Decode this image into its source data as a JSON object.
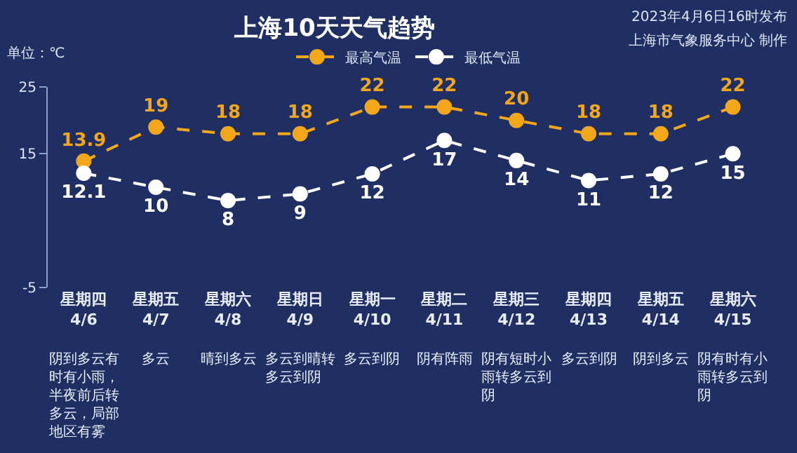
{
  "chart_data": {
    "type": "line",
    "title": "上海10天天气趋势",
    "ylabel": "单位：℃",
    "categories": [
      "星期四\n4/6",
      "星期五\n4/7",
      "星期六\n4/8",
      "星期日\n4/9",
      "星期一\n4/10",
      "星期二\n4/11",
      "星期三\n4/12",
      "星期四\n4/13",
      "星期五\n4/14",
      "星期六\n4/15"
    ],
    "series": [
      {
        "name": "最高气温",
        "color": "#f2a71b",
        "values": [
          13.9,
          19,
          18,
          18,
          22,
          22,
          20,
          18,
          18,
          22
        ]
      },
      {
        "name": "最低气温",
        "color": "#ffffff",
        "values": [
          12.1,
          10,
          8,
          9,
          12,
          17,
          14,
          11,
          12,
          15
        ]
      }
    ],
    "ylim": [
      -5,
      25
    ],
    "yticks": [
      25,
      15,
      -5
    ],
    "legend": "top",
    "marker": "circle",
    "line_style": "dashed",
    "data_labels": true,
    "annotations": [
      "2023年4月6日16时发布",
      "上海市气象服务中心 制作",
      "阴到多云有时有小雨，半夜前后转多云，局部地区有雾",
      "多云",
      "晴到多云",
      "多云到晴转多云到阴",
      "多云到阴",
      "阴有阵雨",
      "阴有短时小雨转多云到阴",
      "多云到阴",
      "阴到多云",
      "阴有时有小雨转多云到阴"
    ]
  }
}
